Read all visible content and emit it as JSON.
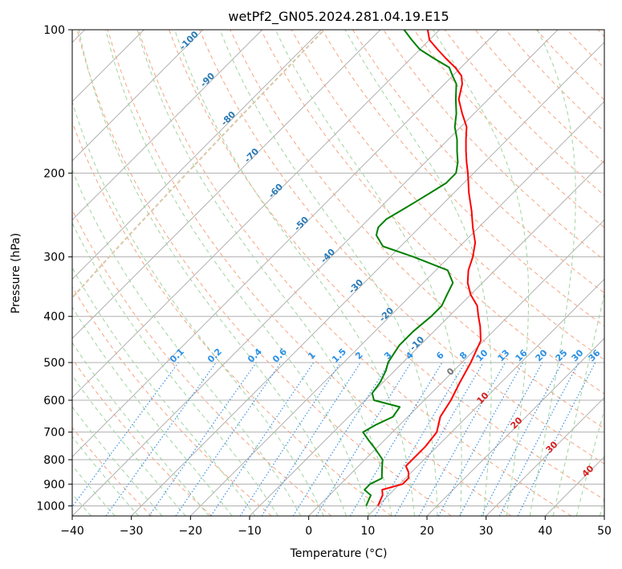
{
  "chart_data": {
    "type": "line",
    "title": "wetPf2_GN05.2024.281.04.19.E15",
    "xlabel": "Temperature (°C)",
    "ylabel": "Pressure (hPa)",
    "xlim": [
      -40,
      50
    ],
    "ylim": [
      1050,
      100
    ],
    "y_scale": "log",
    "skew": true,
    "grid": true,
    "x_ticks": [
      -40,
      -30,
      -20,
      -10,
      0,
      10,
      20,
      30,
      40,
      50
    ],
    "y_ticks": [
      1000,
      900,
      800,
      700,
      600,
      500,
      400,
      300,
      200,
      100
    ],
    "series": [
      {
        "color": "#ff0000",
        "points": [
          [
            10,
            1000
          ],
          [
            9,
            950
          ],
          [
            8,
            925
          ],
          [
            10.5,
            900
          ],
          [
            10.5,
            875
          ],
          [
            9.5,
            850
          ],
          [
            8,
            825
          ],
          [
            8,
            800
          ],
          [
            8,
            750
          ],
          [
            7.5,
            700
          ],
          [
            5.5,
            650
          ],
          [
            4.5,
            600
          ],
          [
            3,
            550
          ],
          [
            1.5,
            500
          ],
          [
            -0.5,
            450
          ],
          [
            -3,
            420
          ],
          [
            -5,
            400
          ],
          [
            -7,
            380
          ],
          [
            -10,
            360
          ],
          [
            -12.5,
            340
          ],
          [
            -14.5,
            320
          ],
          [
            -16,
            300
          ],
          [
            -18,
            280
          ],
          [
            -21,
            260
          ],
          [
            -24,
            240
          ],
          [
            -27.5,
            220
          ],
          [
            -31,
            200
          ],
          [
            -33,
            190
          ],
          [
            -35,
            180
          ],
          [
            -37,
            170
          ],
          [
            -39,
            160
          ],
          [
            -42,
            150
          ],
          [
            -45,
            140
          ],
          [
            -47,
            130
          ],
          [
            -48.5,
            125
          ],
          [
            -51,
            120
          ],
          [
            -54,
            115
          ],
          [
            -57,
            110
          ],
          [
            -60,
            105
          ],
          [
            -62,
            100
          ]
        ]
      },
      {
        "color": "#008000",
        "points": [
          [
            8,
            1000
          ],
          [
            7,
            950
          ],
          [
            5,
            925
          ],
          [
            5,
            900
          ],
          [
            6,
            875
          ],
          [
            5,
            850
          ],
          [
            4,
            825
          ],
          [
            3,
            800
          ],
          [
            0,
            760
          ],
          [
            -2.5,
            730
          ],
          [
            -5,
            700
          ],
          [
            -4,
            675
          ],
          [
            -2.5,
            650
          ],
          [
            -3,
            620
          ],
          [
            -8.5,
            600
          ],
          [
            -10,
            580
          ],
          [
            -10.5,
            550
          ],
          [
            -11.5,
            520
          ],
          [
            -12.5,
            500
          ],
          [
            -13.5,
            460
          ],
          [
            -13.5,
            430
          ],
          [
            -13,
            400
          ],
          [
            -13,
            380
          ],
          [
            -14,
            360
          ],
          [
            -15,
            340
          ],
          [
            -18,
            320
          ],
          [
            -26,
            300
          ],
          [
            -33,
            285
          ],
          [
            -36,
            270
          ],
          [
            -37,
            260
          ],
          [
            -37,
            250
          ],
          [
            -36,
            240
          ],
          [
            -35,
            230
          ],
          [
            -34,
            220
          ],
          [
            -33,
            210
          ],
          [
            -33,
            200
          ],
          [
            -34.5,
            190
          ],
          [
            -36.5,
            180
          ],
          [
            -38.5,
            170
          ],
          [
            -41,
            160
          ],
          [
            -43,
            150
          ],
          [
            -45.5,
            140
          ],
          [
            -48,
            130
          ],
          [
            -50,
            125
          ],
          [
            -52,
            120
          ],
          [
            -56,
            115
          ],
          [
            -60,
            110
          ],
          [
            -63,
            105
          ],
          [
            -66,
            100
          ]
        ]
      }
    ],
    "dry_adiabat_labels": [
      "-100",
      "-90",
      "-80",
      "-70",
      "-60",
      "-50",
      "-40",
      "-30",
      "-20",
      "-10"
    ],
    "mixing_ratio_labels": [
      "0.1",
      "0.2",
      "0.4",
      "0.6",
      "1",
      "1.5",
      "2",
      "3",
      "4",
      "6",
      "8",
      "10",
      "13",
      "16",
      "20",
      "25",
      "30",
      "36"
    ],
    "moist_adiabat_labels": [
      "0",
      "10",
      "20",
      "30",
      "40"
    ]
  }
}
